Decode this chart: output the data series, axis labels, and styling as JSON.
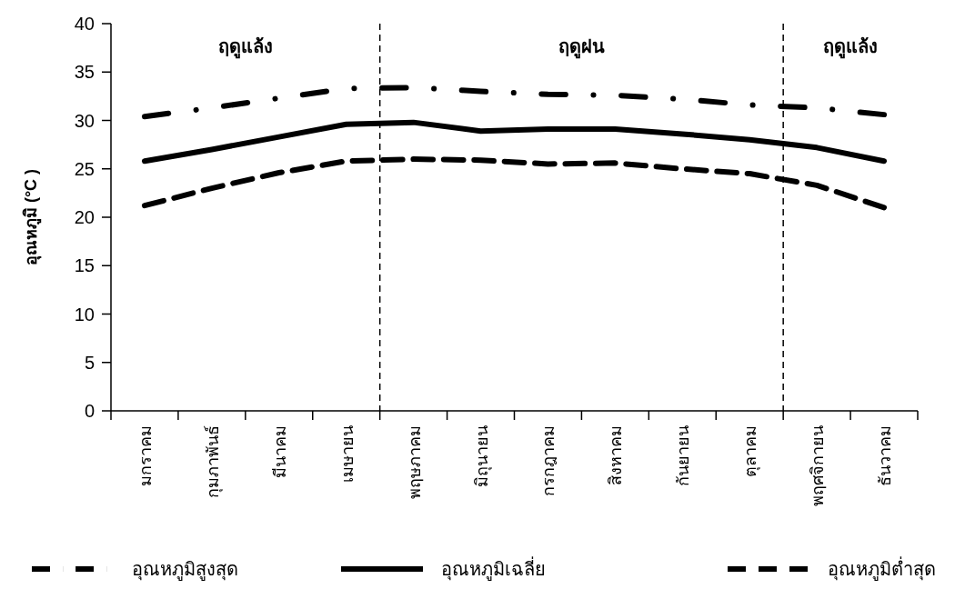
{
  "chart_data": {
    "type": "line",
    "ylabel": "อุณหภูมิ (°C )",
    "categories": [
      "มกราคม",
      "กุมภาพันธ์",
      "มีนาคม",
      "เมษายน",
      "พฤษภาคม",
      "มิถุนายน",
      "กรกฎาคม",
      "สิงหาคม",
      "กันยายน",
      "ตุลาคม",
      "พฤศจิกายน",
      "ธันวาคม"
    ],
    "series": [
      {
        "name": "อุณหภูมิสูงสุด",
        "color": "#000000",
        "line_style": "dashdot",
        "values": [
          30.4,
          31.3,
          32.3,
          33.3,
          33.4,
          33.0,
          32.7,
          32.6,
          32.2,
          31.6,
          31.3,
          30.6
        ]
      },
      {
        "name": "อุณหภูมิเฉลี่ย",
        "color": "#000000",
        "line_style": "solid",
        "values": [
          25.8,
          27.0,
          28.3,
          29.6,
          29.8,
          28.9,
          29.1,
          29.1,
          28.6,
          28.0,
          27.2,
          25.8
        ]
      },
      {
        "name": "อุณหภูมิต่ำสุด",
        "color": "#000000",
        "line_style": "dashed",
        "values": [
          21.2,
          23.0,
          24.6,
          25.8,
          26.0,
          25.9,
          25.5,
          25.6,
          25.0,
          24.5,
          23.3,
          21.0
        ]
      }
    ],
    "ylim": [
      0,
      40
    ],
    "yticks": [
      0,
      5,
      10,
      15,
      20,
      25,
      30,
      35,
      40
    ],
    "annotations": [
      "ฤดูแล้ง",
      "ฤดูฝน",
      "ฤดูแล้ง"
    ],
    "legend": "bottom",
    "grid": false
  }
}
